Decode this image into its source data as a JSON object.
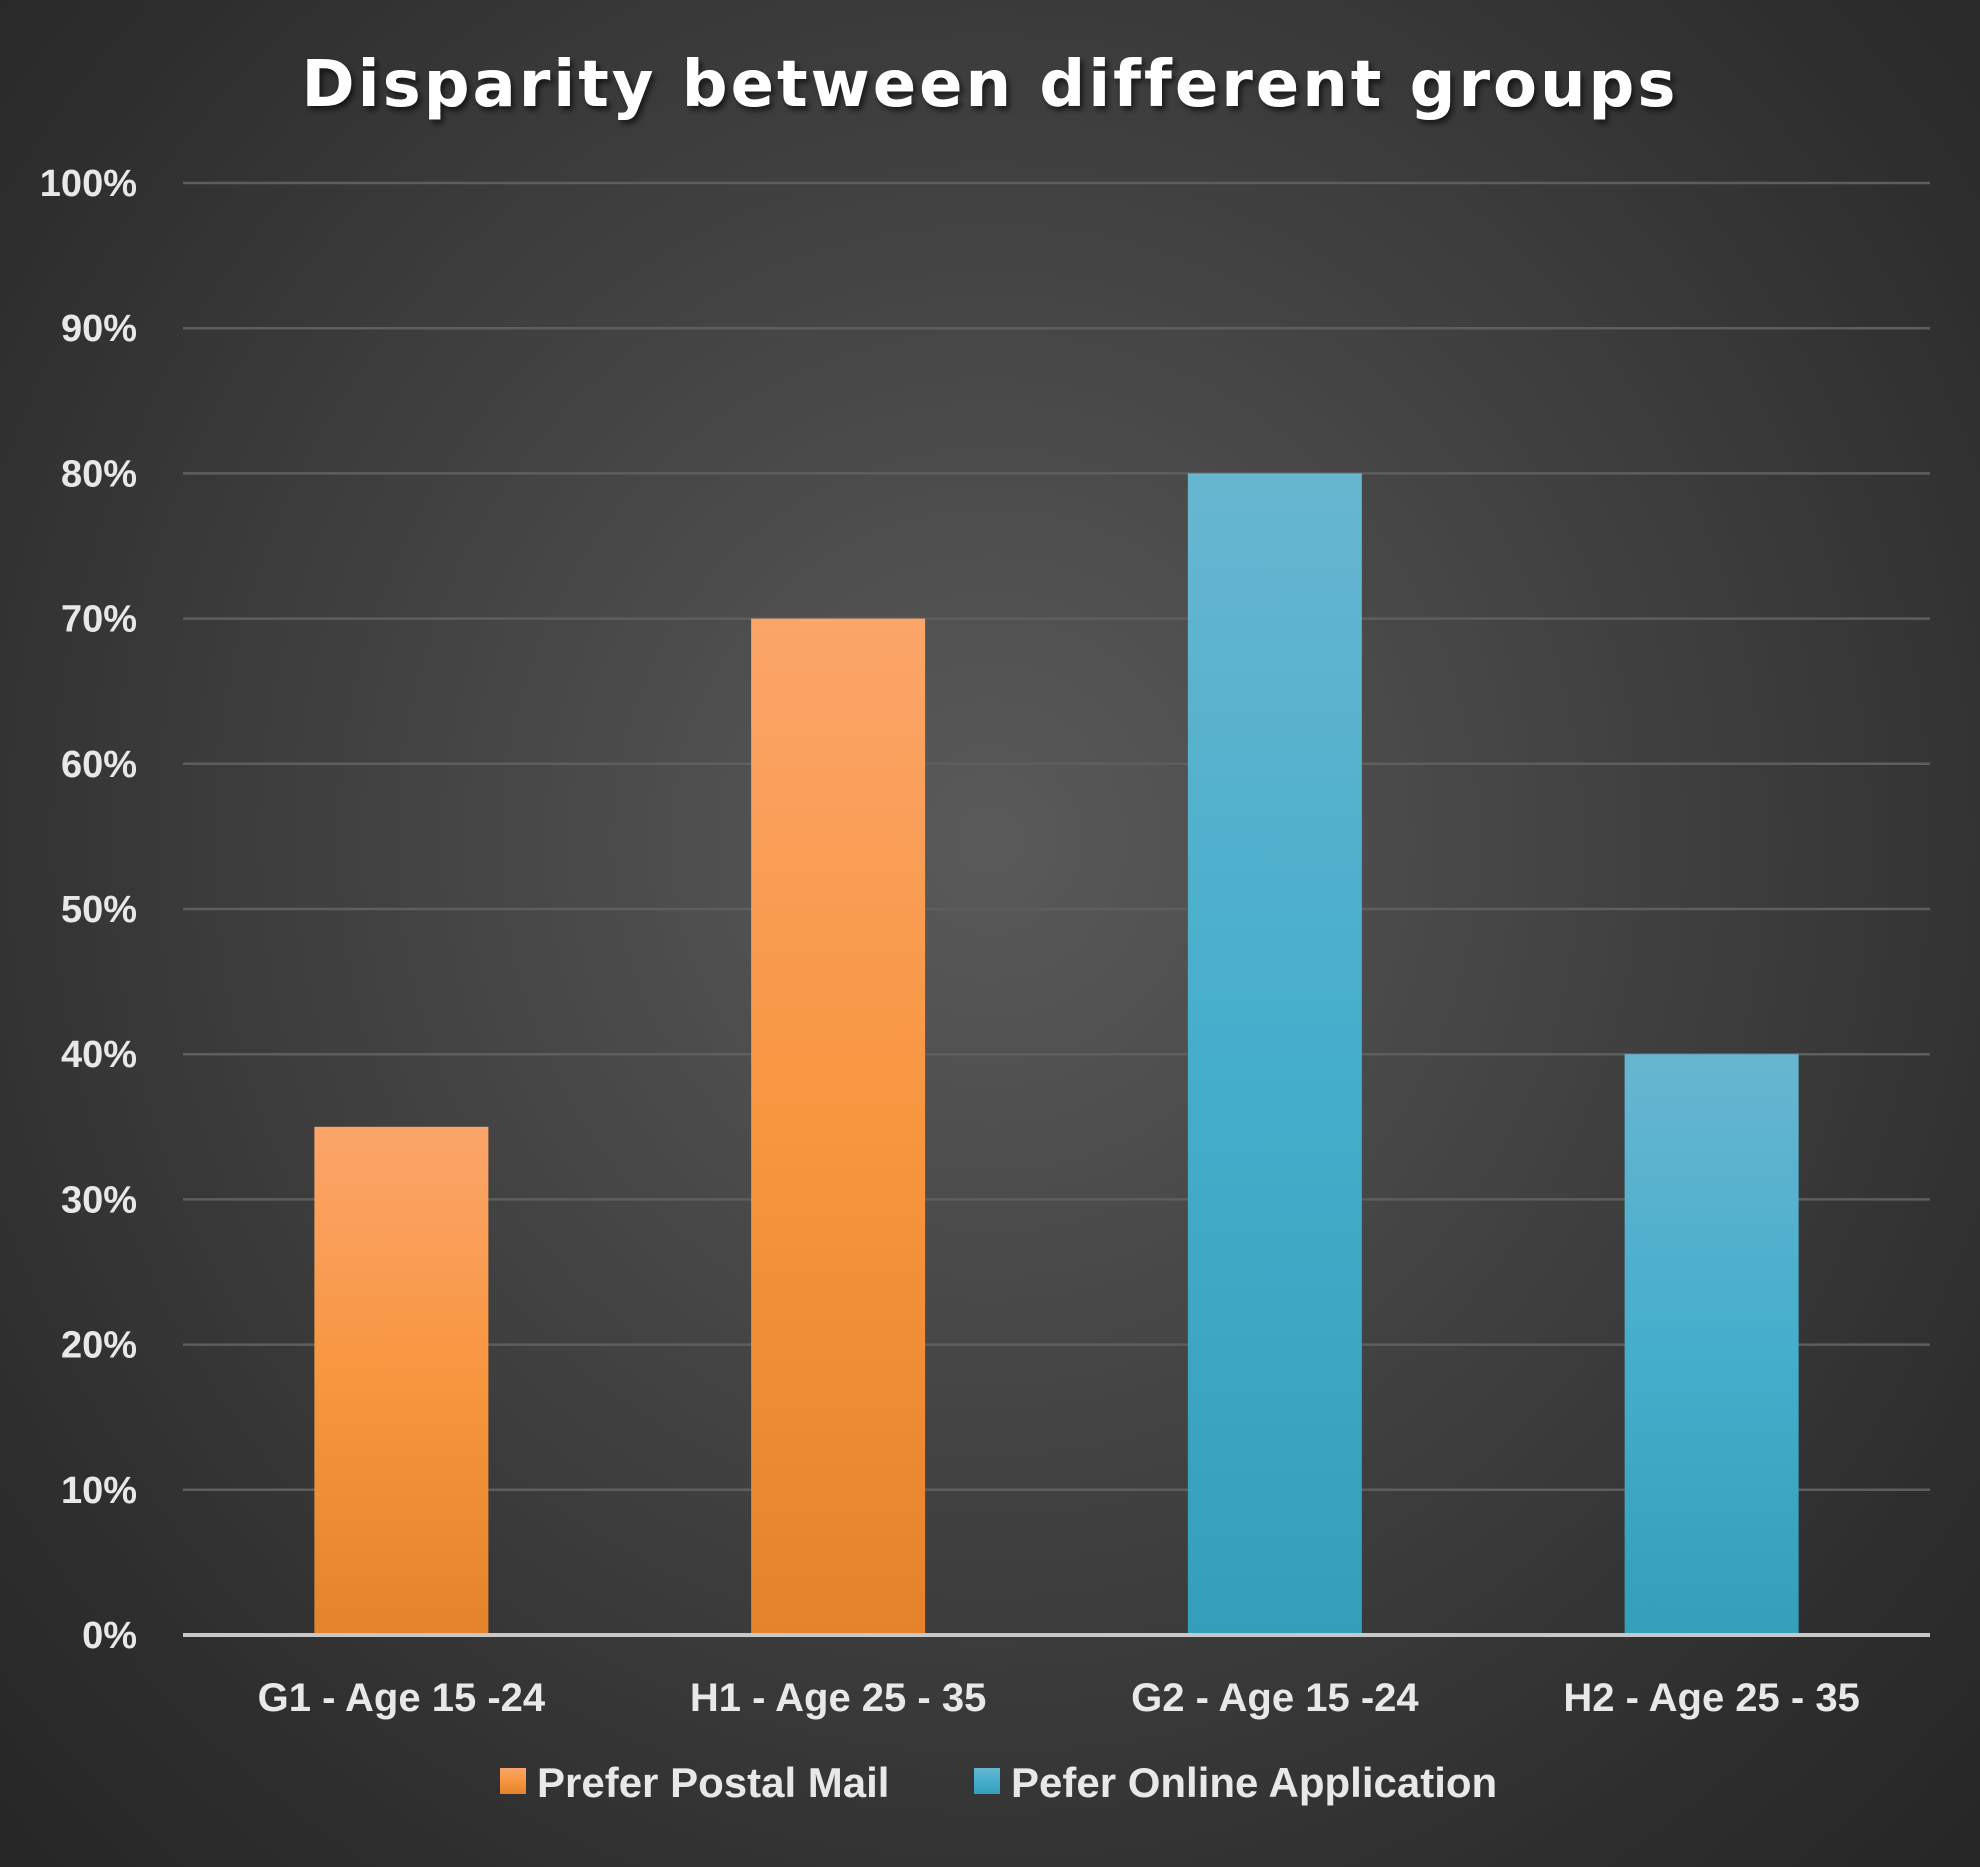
{
  "chart_data": {
    "type": "bar",
    "title": "Disparity between different groups",
    "categories": [
      "G1 - Age 15 -24",
      "H1 - Age 25 - 35",
      "G2 - Age 15 -24",
      "H2 - Age 25 - 35"
    ],
    "series": [
      {
        "name": "Prefer Postal Mail",
        "color": "#f79646",
        "values": [
          35,
          70,
          null,
          null
        ]
      },
      {
        "name": "Pefer Online Application",
        "color": "#4bacc6",
        "values": [
          null,
          null,
          80,
          40
        ]
      }
    ],
    "ylim": [
      0,
      100
    ],
    "yticks": [
      0,
      10,
      20,
      30,
      40,
      50,
      60,
      70,
      80,
      90,
      100
    ],
    "ytick_labels": [
      "0%",
      "10%",
      "20%",
      "30%",
      "40%",
      "50%",
      "60%",
      "70%",
      "80%",
      "90%",
      "100%"
    ],
    "xlabel": "",
    "ylabel": "",
    "grid": true,
    "legend_position": "bottom"
  }
}
